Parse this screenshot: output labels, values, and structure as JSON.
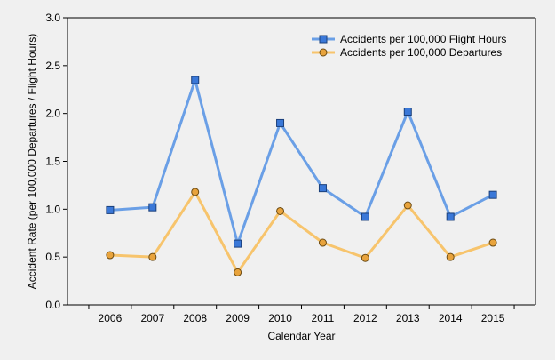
{
  "chart_data": {
    "type": "line",
    "xlabel": "Calendar Year",
    "ylabel": "Accident Rate (per 100,000 Departures / Flight Hours)",
    "categories": [
      "2006",
      "2007",
      "2008",
      "2009",
      "2010",
      "2011",
      "2012",
      "2013",
      "2014",
      "2015"
    ],
    "ylim": [
      0,
      3.0
    ],
    "yticks": [
      "0.0",
      "0.5",
      "1.0",
      "1.5",
      "2.0",
      "2.5",
      "3.0"
    ],
    "grid": false,
    "legend_position": "top-right",
    "series": [
      {
        "name": "Accidents per 100,000 Flight Hours",
        "color": "#6a9fe6",
        "marker": "square",
        "marker_color": "#3a78d8",
        "values": [
          0.99,
          1.02,
          2.35,
          0.64,
          1.9,
          1.22,
          0.92,
          2.02,
          0.92,
          1.15
        ]
      },
      {
        "name": "Accidents per 100,000 Departures",
        "color": "#f7c46c",
        "marker": "circle",
        "marker_color": "#e8a33c",
        "values": [
          0.52,
          0.5,
          1.18,
          0.34,
          0.98,
          0.65,
          0.49,
          1.04,
          0.5,
          0.65
        ]
      }
    ]
  }
}
